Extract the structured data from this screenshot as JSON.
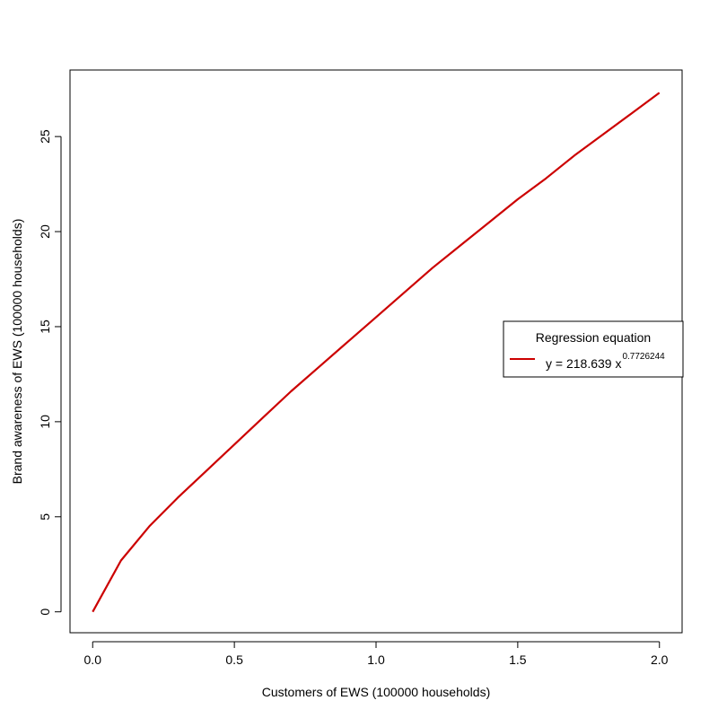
{
  "chart_data": {
    "type": "line",
    "title": "",
    "xlabel": "Customers of EWS (100000 households)",
    "ylabel": "Brand awareness of EWS (100000 households)",
    "xlim": [
      -0.08,
      2.08
    ],
    "ylim": [
      -1.1,
      28.5
    ],
    "xticks": [
      0.0,
      0.5,
      1.0,
      1.5,
      2.0
    ],
    "xtick_labels": [
      "0.0",
      "0.5",
      "1.0",
      "1.5",
      "2.0"
    ],
    "yticks": [
      0,
      5,
      10,
      15,
      20,
      25
    ],
    "ytick_labels": [
      "0",
      "5",
      "10",
      "15",
      "20",
      "25"
    ],
    "grid": false,
    "legend_position": "right",
    "legend": {
      "title": "Regression equation",
      "label_main": "y = 218.639 x",
      "label_sup": "0.7726244"
    },
    "series": [
      {
        "color": "#cc0000",
        "x": [
          0.0,
          0.1,
          0.2,
          0.3,
          0.4,
          0.5,
          0.6,
          0.7,
          0.8,
          0.9,
          1.0,
          1.1,
          1.2,
          1.3,
          1.4,
          1.5,
          1.6,
          1.7,
          1.8,
          1.9,
          2.0
        ],
        "y": [
          0.0,
          2.7,
          4.5,
          6.0,
          7.4,
          8.8,
          10.2,
          11.6,
          12.9,
          14.2,
          15.5,
          16.8,
          18.1,
          19.3,
          20.5,
          21.7,
          22.8,
          24.0,
          25.1,
          26.2,
          27.3
        ]
      }
    ]
  }
}
